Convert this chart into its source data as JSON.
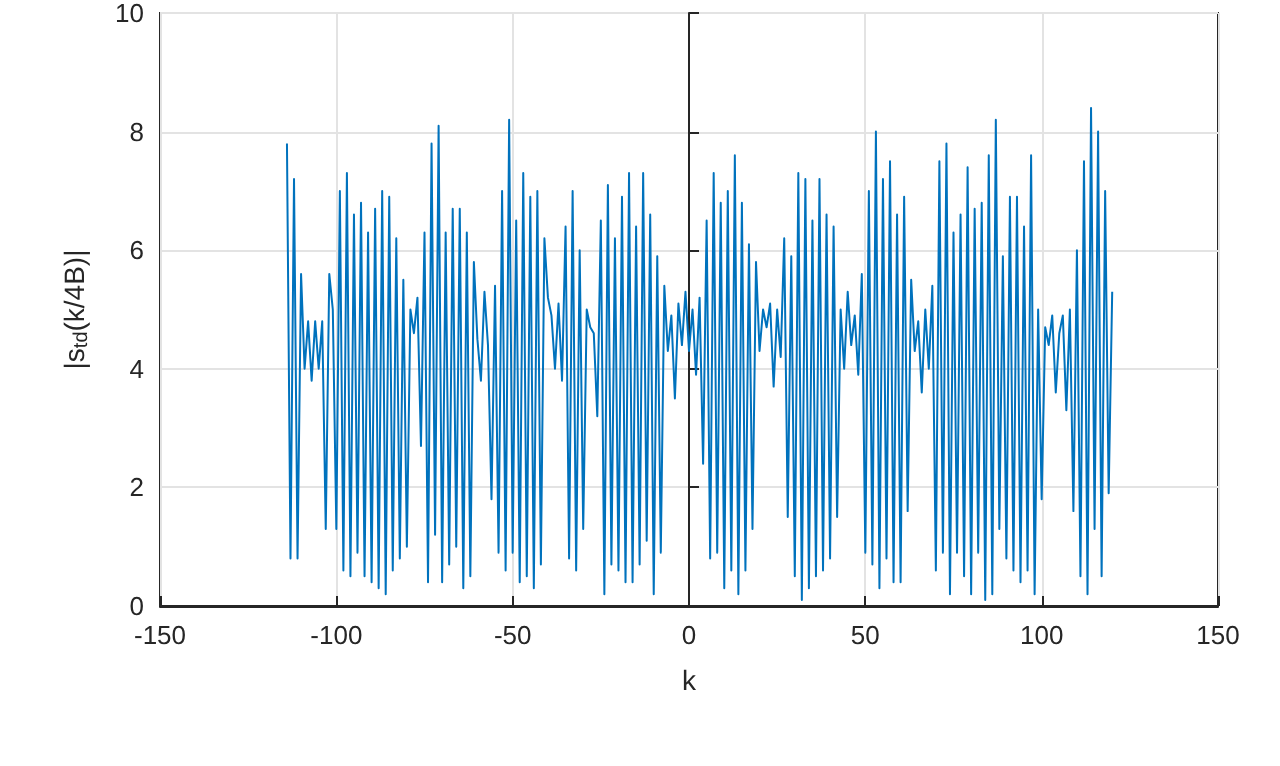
{
  "chart_data": {
    "type": "line",
    "xlabel": "k",
    "ylabel": "|s$_{td}$(k/4B)|",
    "xlim": [
      -150,
      150
    ],
    "xticks": [
      -150,
      -100,
      -50,
      0,
      50,
      100,
      150
    ],
    "ylim": [
      0,
      10
    ],
    "yticks": [
      0,
      2,
      4,
      6,
      8,
      10
    ],
    "grid": true,
    "marker": "none",
    "line_style": "solid",
    "x": [
      -114,
      -113,
      -112,
      -111,
      -110,
      -109,
      -108,
      -107,
      -106,
      -105,
      -104,
      -103,
      -102,
      -101,
      -100,
      -99,
      -98,
      -97,
      -96,
      -95,
      -94,
      -93,
      -92,
      -91,
      -90,
      -89,
      -88,
      -87,
      -86,
      -85,
      -84,
      -83,
      -82,
      -81,
      -80,
      -79,
      -78,
      -77,
      -76,
      -75,
      -74,
      -73,
      -72,
      -71,
      -70,
      -69,
      -68,
      -67,
      -66,
      -65,
      -64,
      -63,
      -62,
      -61,
      -60,
      -59,
      -58,
      -57,
      -56,
      -55,
      -54,
      -53,
      -52,
      -51,
      -50,
      -49,
      -48,
      -47,
      -46,
      -45,
      -44,
      -43,
      -42,
      -41,
      -40,
      -39,
      -38,
      -37,
      -36,
      -35,
      -34,
      -33,
      -32,
      -31,
      -30,
      -29,
      -28,
      -27,
      -26,
      -25,
      -24,
      -23,
      -22,
      -21,
      -20,
      -19,
      -18,
      -17,
      -16,
      -15,
      -14,
      -13,
      -12,
      -11,
      -10,
      -9,
      -8,
      -7,
      -6,
      -5,
      -4,
      -3,
      -2,
      -1,
      0,
      1,
      2,
      3,
      4,
      5,
      6,
      7,
      8,
      9,
      10,
      11,
      12,
      13,
      14,
      15,
      16,
      17,
      18,
      19,
      20,
      21,
      22,
      23,
      24,
      25,
      26,
      27,
      28,
      29,
      30,
      31,
      32,
      33,
      34,
      35,
      36,
      37,
      38,
      39,
      40,
      41,
      42,
      43,
      44,
      45,
      46,
      47,
      48,
      49,
      50,
      51,
      52,
      53,
      54,
      55,
      56,
      57,
      58,
      59,
      60,
      61,
      62,
      63,
      64,
      65,
      66,
      67,
      68,
      69,
      70,
      71,
      72,
      73,
      74,
      75,
      76,
      77,
      78,
      79,
      80,
      81,
      82,
      83,
      84,
      85,
      86,
      87,
      88,
      89,
      90,
      91,
      92,
      93,
      94,
      95,
      96,
      97,
      98,
      99,
      100,
      101,
      102,
      103,
      104,
      105,
      106,
      107,
      108,
      109,
      110,
      111,
      112,
      113,
      114,
      115,
      116,
      117,
      118,
      119,
      120
    ],
    "series": [
      {
        "color": "#0072bd",
        "values": [
          7.8,
          0.8,
          7.2,
          0.8,
          5.6,
          4.0,
          4.8,
          3.8,
          4.8,
          4.0,
          4.8,
          1.3,
          5.6,
          5.0,
          1.3,
          7.0,
          0.6,
          7.3,
          0.5,
          6.6,
          0.9,
          6.8,
          0.5,
          6.3,
          0.4,
          6.7,
          0.3,
          7.0,
          0.2,
          6.9,
          0.6,
          6.2,
          0.8,
          5.5,
          1.0,
          5.0,
          4.6,
          5.2,
          2.7,
          6.3,
          0.4,
          7.8,
          1.2,
          8.1,
          0.4,
          6.3,
          0.7,
          6.7,
          1.0,
          6.7,
          0.3,
          6.3,
          0.5,
          5.8,
          4.5,
          3.8,
          5.3,
          4.4,
          1.8,
          5.4,
          0.9,
          7.0,
          0.6,
          8.2,
          0.9,
          6.5,
          0.4,
          7.3,
          0.5,
          6.9,
          0.3,
          7.0,
          0.7,
          6.2,
          5.2,
          4.9,
          4.0,
          5.1,
          3.8,
          6.4,
          0.8,
          7.0,
          0.6,
          6.0,
          1.3,
          5.0,
          4.7,
          4.6,
          3.2,
          6.5,
          0.2,
          7.1,
          0.7,
          6.2,
          0.6,
          6.9,
          0.4,
          7.3,
          0.4,
          6.4,
          0.7,
          7.3,
          1.1,
          6.6,
          0.2,
          5.9,
          0.9,
          5.4,
          4.3,
          4.9,
          3.5,
          5.1,
          4.4,
          5.3,
          4.3,
          5.0,
          3.9,
          5.2,
          2.4,
          6.5,
          0.8,
          7.3,
          0.9,
          6.8,
          0.3,
          7.0,
          0.6,
          7.6,
          0.2,
          6.8,
          0.6,
          6.1,
          1.3,
          5.8,
          4.3,
          5.0,
          4.7,
          5.1,
          3.7,
          5.0,
          4.2,
          6.2,
          1.5,
          5.9,
          0.5,
          7.3,
          0.1,
          7.2,
          0.3,
          6.5,
          0.5,
          7.2,
          0.6,
          6.6,
          0.8,
          6.4,
          1.5,
          5.0,
          4.0,
          5.3,
          4.4,
          4.9,
          3.9,
          5.6,
          0.9,
          7.0,
          0.7,
          8.0,
          0.3,
          7.2,
          0.8,
          7.5,
          0.4,
          6.6,
          0.4,
          6.9,
          1.6,
          5.5,
          4.3,
          4.8,
          3.6,
          5.0,
          4.0,
          5.4,
          0.6,
          7.5,
          0.9,
          7.8,
          0.2,
          6.3,
          0.9,
          6.6,
          0.5,
          7.4,
          0.2,
          6.7,
          0.9,
          6.8,
          0.1,
          7.6,
          0.2,
          8.2,
          1.3,
          5.9,
          0.8,
          6.9,
          0.6,
          6.9,
          0.4,
          6.4,
          0.6,
          7.6,
          0.2,
          5.0,
          1.8,
          4.7,
          4.4,
          4.9,
          3.6,
          4.6,
          4.9,
          3.3,
          5.0,
          1.6,
          6.0,
          0.5,
          7.5,
          0.2,
          8.4,
          1.3,
          8.0,
          0.5,
          7.0,
          1.9,
          5.3
        ]
      }
    ]
  }
}
